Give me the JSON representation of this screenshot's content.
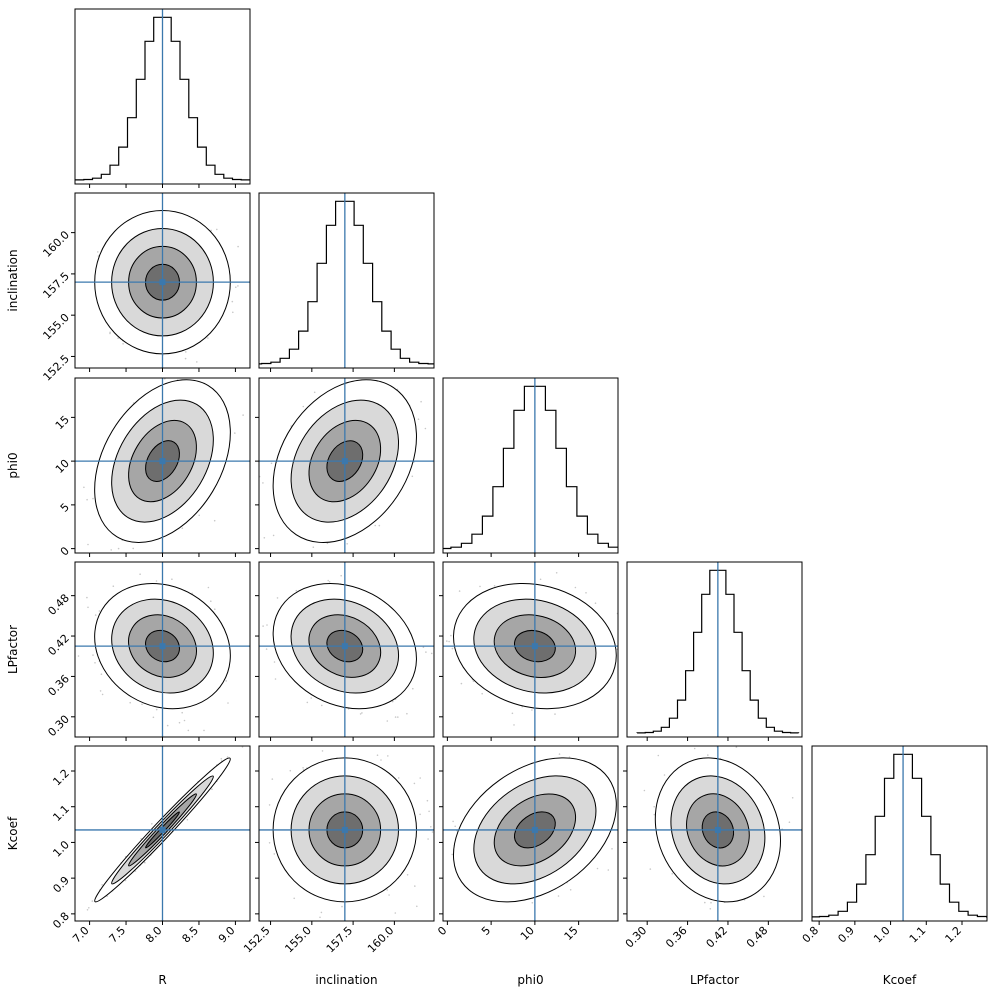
{
  "chart_data": {
    "type": "corner",
    "parameters": [
      {
        "name": "R",
        "label": "R",
        "range": [
          6.8,
          9.2
        ],
        "ticks": [
          7.0,
          7.5,
          8.0,
          8.5,
          9.0
        ],
        "tick_labels": [
          "7.0",
          "7.5",
          "8.0",
          "8.5",
          "9.0"
        ],
        "truth": 8.0,
        "std": 0.3
      },
      {
        "name": "inclination",
        "label": "inclination",
        "range": [
          151.8,
          162.4
        ],
        "ticks": [
          152.5,
          155.0,
          157.5,
          160.0
        ],
        "tick_labels": [
          "152.5",
          "155.0",
          "157.5",
          "160.0"
        ],
        "truth": 157.0,
        "std": 1.4
      },
      {
        "name": "phi0",
        "label": "phi0",
        "range": [
          -0.5,
          19.5
        ],
        "ticks": [
          0,
          5,
          10,
          15
        ],
        "tick_labels": [
          "0",
          "5",
          "10",
          "15"
        ],
        "truth": 10.0,
        "std": 3.0
      },
      {
        "name": "LPfactor",
        "label": "LPfactor",
        "range": [
          0.27,
          0.53
        ],
        "ticks": [
          0.3,
          0.36,
          0.42,
          0.48
        ],
        "tick_labels": [
          "0.30",
          "0.36",
          "0.42",
          "0.48"
        ],
        "truth": 0.405,
        "std": 0.03
      },
      {
        "name": "Kcoef",
        "label": "Kcoef",
        "range": [
          0.78,
          1.27
        ],
        "ticks": [
          0.8,
          0.9,
          1.0,
          1.1,
          1.2
        ],
        "tick_labels": [
          "0.8",
          "0.9",
          "1.0",
          "1.1",
          "1.2"
        ],
        "truth": 1.035,
        "std": 0.065
      }
    ],
    "correlations": [
      {
        "pair": [
          "R",
          "inclination"
        ],
        "rho": 0.0
      },
      {
        "pair": [
          "R",
          "phi0"
        ],
        "rho": 0.35
      },
      {
        "pair": [
          "R",
          "LPfactor"
        ],
        "rho": -0.15
      },
      {
        "pair": [
          "R",
          "Kcoef"
        ],
        "rho": 0.985
      },
      {
        "pair": [
          "inclination",
          "phi0"
        ],
        "rho": 0.3
      },
      {
        "pair": [
          "inclination",
          "LPfactor"
        ],
        "rho": -0.2
      },
      {
        "pair": [
          "inclination",
          "Kcoef"
        ],
        "rho": 0.0
      },
      {
        "pair": [
          "phi0",
          "LPfactor"
        ],
        "rho": -0.15
      },
      {
        "pair": [
          "phi0",
          "Kcoef"
        ],
        "rho": 0.35
      },
      {
        "pair": [
          "LPfactor",
          "Kcoef"
        ],
        "rho": -0.15
      }
    ],
    "histogram_bins": 20,
    "contour_levels_sigma": [
      0.5,
      1.0,
      1.5,
      2.0
    ],
    "truth_color": "#3b78ad",
    "hist_color": "#000000"
  }
}
